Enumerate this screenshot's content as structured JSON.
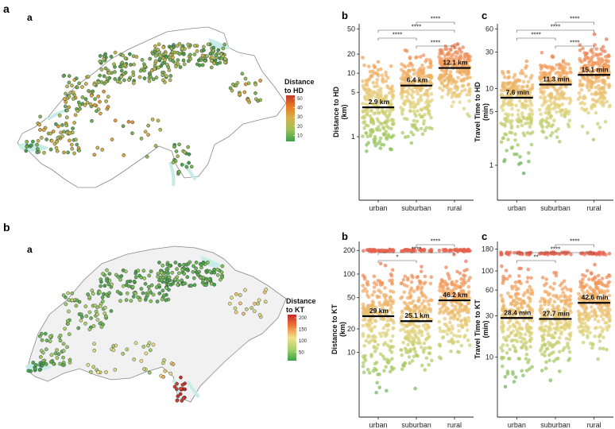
{
  "figure": {
    "row_labels": [
      "a",
      "b"
    ],
    "panels": [
      {
        "map_label": "a",
        "map_legend": {
          "title_lines": [
            "Distance",
            "to HD"
          ],
          "ticks": [
            "50",
            "40",
            "30",
            "20",
            "10"
          ],
          "colors": [
            "#c0392b",
            "#e67e22",
            "#d4b24c",
            "#9cc05a",
            "#3f9e4a"
          ]
        }
      },
      {
        "map_label": "a",
        "map_legend": {
          "title_lines": [
            "Distance",
            "to KT"
          ],
          "ticks": [
            "200",
            "150",
            "100",
            "50"
          ],
          "colors": [
            "#c62828",
            "#ef7d3a",
            "#f3e08a",
            "#a7d36b",
            "#3da14a"
          ]
        }
      }
    ]
  },
  "chart_data": [
    {
      "id": "top-b",
      "label": "b",
      "type": "scatter",
      "ylabel_lines": [
        "Distance to HD",
        "(km)"
      ],
      "yscale": "log",
      "ylim": [
        0.1,
        60
      ],
      "yticks": [
        1,
        5,
        10,
        20,
        50
      ],
      "ytick_labels": [
        "1",
        "5",
        "10",
        "20",
        "50"
      ],
      "categories": [
        "urban",
        "suburban",
        "rural"
      ],
      "medians": [
        2.9,
        6.4,
        12.1
      ],
      "median_labels": [
        "2.9 km",
        "6.4 km",
        "12.1 km"
      ],
      "significance": [
        {
          "from": 1,
          "to": 2,
          "label": "****"
        },
        {
          "from": 0,
          "to": 1,
          "label": "****"
        },
        {
          "from": 0,
          "to": 2,
          "label": "****"
        },
        {
          "from": 1,
          "to": 2,
          "label": "****"
        }
      ],
      "spread": [
        [
          0.25,
          25
        ],
        [
          0.5,
          30
        ],
        [
          1.5,
          45
        ]
      ],
      "color_range": [
        0.25,
        50
      ]
    },
    {
      "id": "top-c",
      "label": "c",
      "type": "scatter",
      "ylabel_lines": [
        "Travel Time to HD",
        "(min)"
      ],
      "yscale": "log",
      "ylim": [
        0.35,
        70
      ],
      "yticks": [
        1,
        5,
        10,
        30,
        60
      ],
      "ytick_labels": [
        "1",
        "5",
        "10",
        "30",
        "60"
      ],
      "categories": [
        "urban",
        "suburban",
        "rural"
      ],
      "medians": [
        7.6,
        11.3,
        15.1
      ],
      "median_labels": [
        "7.6 min",
        "11.3 min",
        "15.1 min"
      ],
      "significance": [
        {
          "from": 1,
          "to": 2,
          "label": "****"
        },
        {
          "from": 0,
          "to": 1,
          "label": "****"
        },
        {
          "from": 0,
          "to": 2,
          "label": "****"
        },
        {
          "from": 1,
          "to": 2,
          "label": "****"
        }
      ],
      "spread": [
        [
          0.6,
          25
        ],
        [
          1,
          35
        ],
        [
          1.8,
          55
        ]
      ],
      "color_range": [
        0.6,
        55
      ]
    },
    {
      "id": "bot-b",
      "label": "b",
      "type": "scatter",
      "ylabel_lines": [
        "Distance to KT",
        "(km)"
      ],
      "yscale": "log",
      "ylim": [
        1.5,
        260
      ],
      "yticks": [
        10,
        20,
        50,
        100,
        200
      ],
      "ytick_labels": [
        "10",
        "20",
        "50",
        "100",
        "200"
      ],
      "categories": [
        "urban",
        "suburban",
        "rural"
      ],
      "medians": [
        29,
        25.1,
        46.2
      ],
      "median_labels": [
        "29 km",
        "25.1 km",
        "46.2 km"
      ],
      "significance": [
        {
          "from": 0,
          "to": 1,
          "label": "*"
        },
        {
          "from": 0,
          "to": 2,
          "label": "****"
        },
        {
          "from": 1,
          "to": 2,
          "label": "****"
        }
      ],
      "spread": [
        [
          1.8,
          200
        ],
        [
          3,
          200
        ],
        [
          5,
          200
        ]
      ],
      "color_range": [
        1.8,
        200
      ]
    },
    {
      "id": "bot-c",
      "label": "c",
      "type": "scatter",
      "ylabel_lines": [
        "Travel Time to KT",
        "(min)"
      ],
      "yscale": "log",
      "ylim": [
        2,
        220
      ],
      "yticks": [
        10,
        30,
        60,
        100,
        180
      ],
      "ytick_labels": [
        "10",
        "30",
        "60",
        "100",
        "180"
      ],
      "categories": [
        "urban",
        "suburban",
        "rural"
      ],
      "medians": [
        28.4,
        27.7,
        42.6
      ],
      "median_labels": [
        "28.4 min",
        "27.7 min",
        "42.6 min"
      ],
      "significance": [
        {
          "from": 0,
          "to": 1,
          "label": "**"
        },
        {
          "from": 0,
          "to": 2,
          "label": "****"
        },
        {
          "from": 1,
          "to": 2,
          "label": "****"
        }
      ],
      "spread": [
        [
          3,
          160
        ],
        [
          4,
          160
        ],
        [
          8,
          160
        ]
      ],
      "color_range": [
        3,
        160
      ]
    }
  ]
}
